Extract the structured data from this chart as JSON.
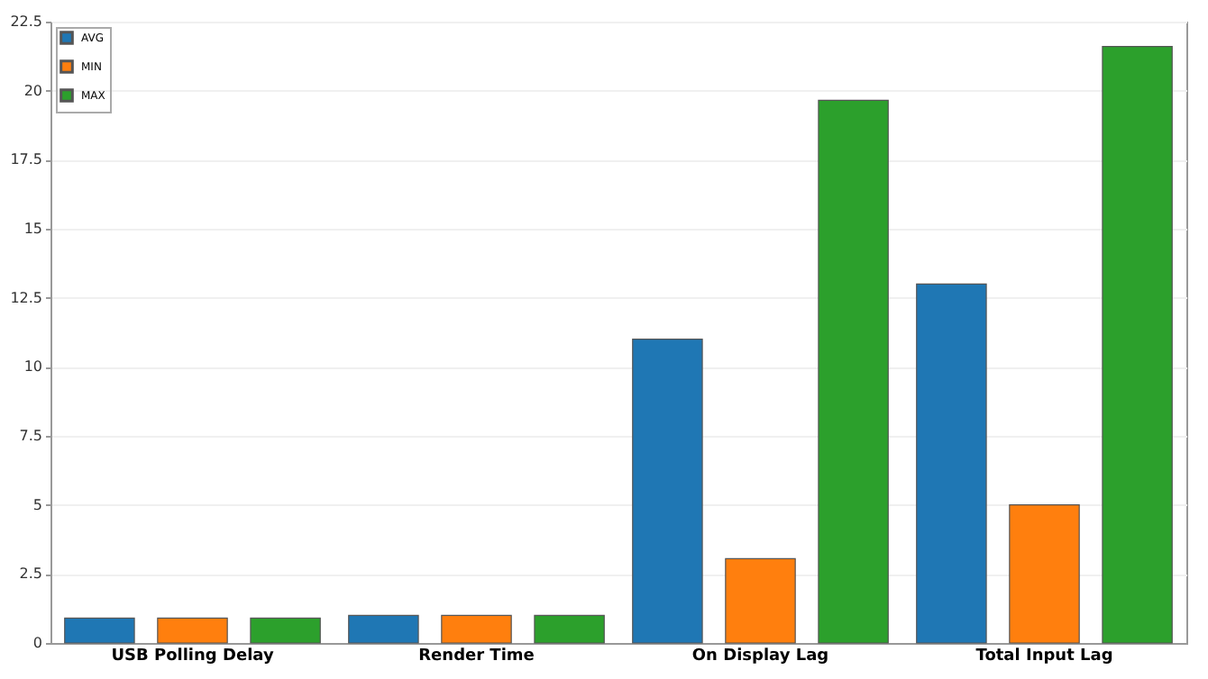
{
  "chart_data": {
    "type": "bar",
    "categories": [
      "USB Polling Delay",
      "Render Time",
      "On Display Lag",
      "Total Input Lag"
    ],
    "series": [
      {
        "name": "AVG",
        "color": "#1f77b4",
        "values": [
          0.9,
          1.0,
          11.0,
          13.0
        ]
      },
      {
        "name": "MIN",
        "color": "#ff7f0e",
        "values": [
          0.9,
          1.0,
          3.05,
          5.0
        ]
      },
      {
        "name": "MAX",
        "color": "#2ca02c",
        "values": [
          0.9,
          1.0,
          19.65,
          21.6
        ]
      }
    ],
    "ylim": [
      0,
      22.5
    ],
    "yticks": [
      0,
      2.5,
      5,
      7.5,
      10,
      12.5,
      15,
      17.5,
      20,
      22.5
    ],
    "grid": "y",
    "legend": "top left"
  }
}
